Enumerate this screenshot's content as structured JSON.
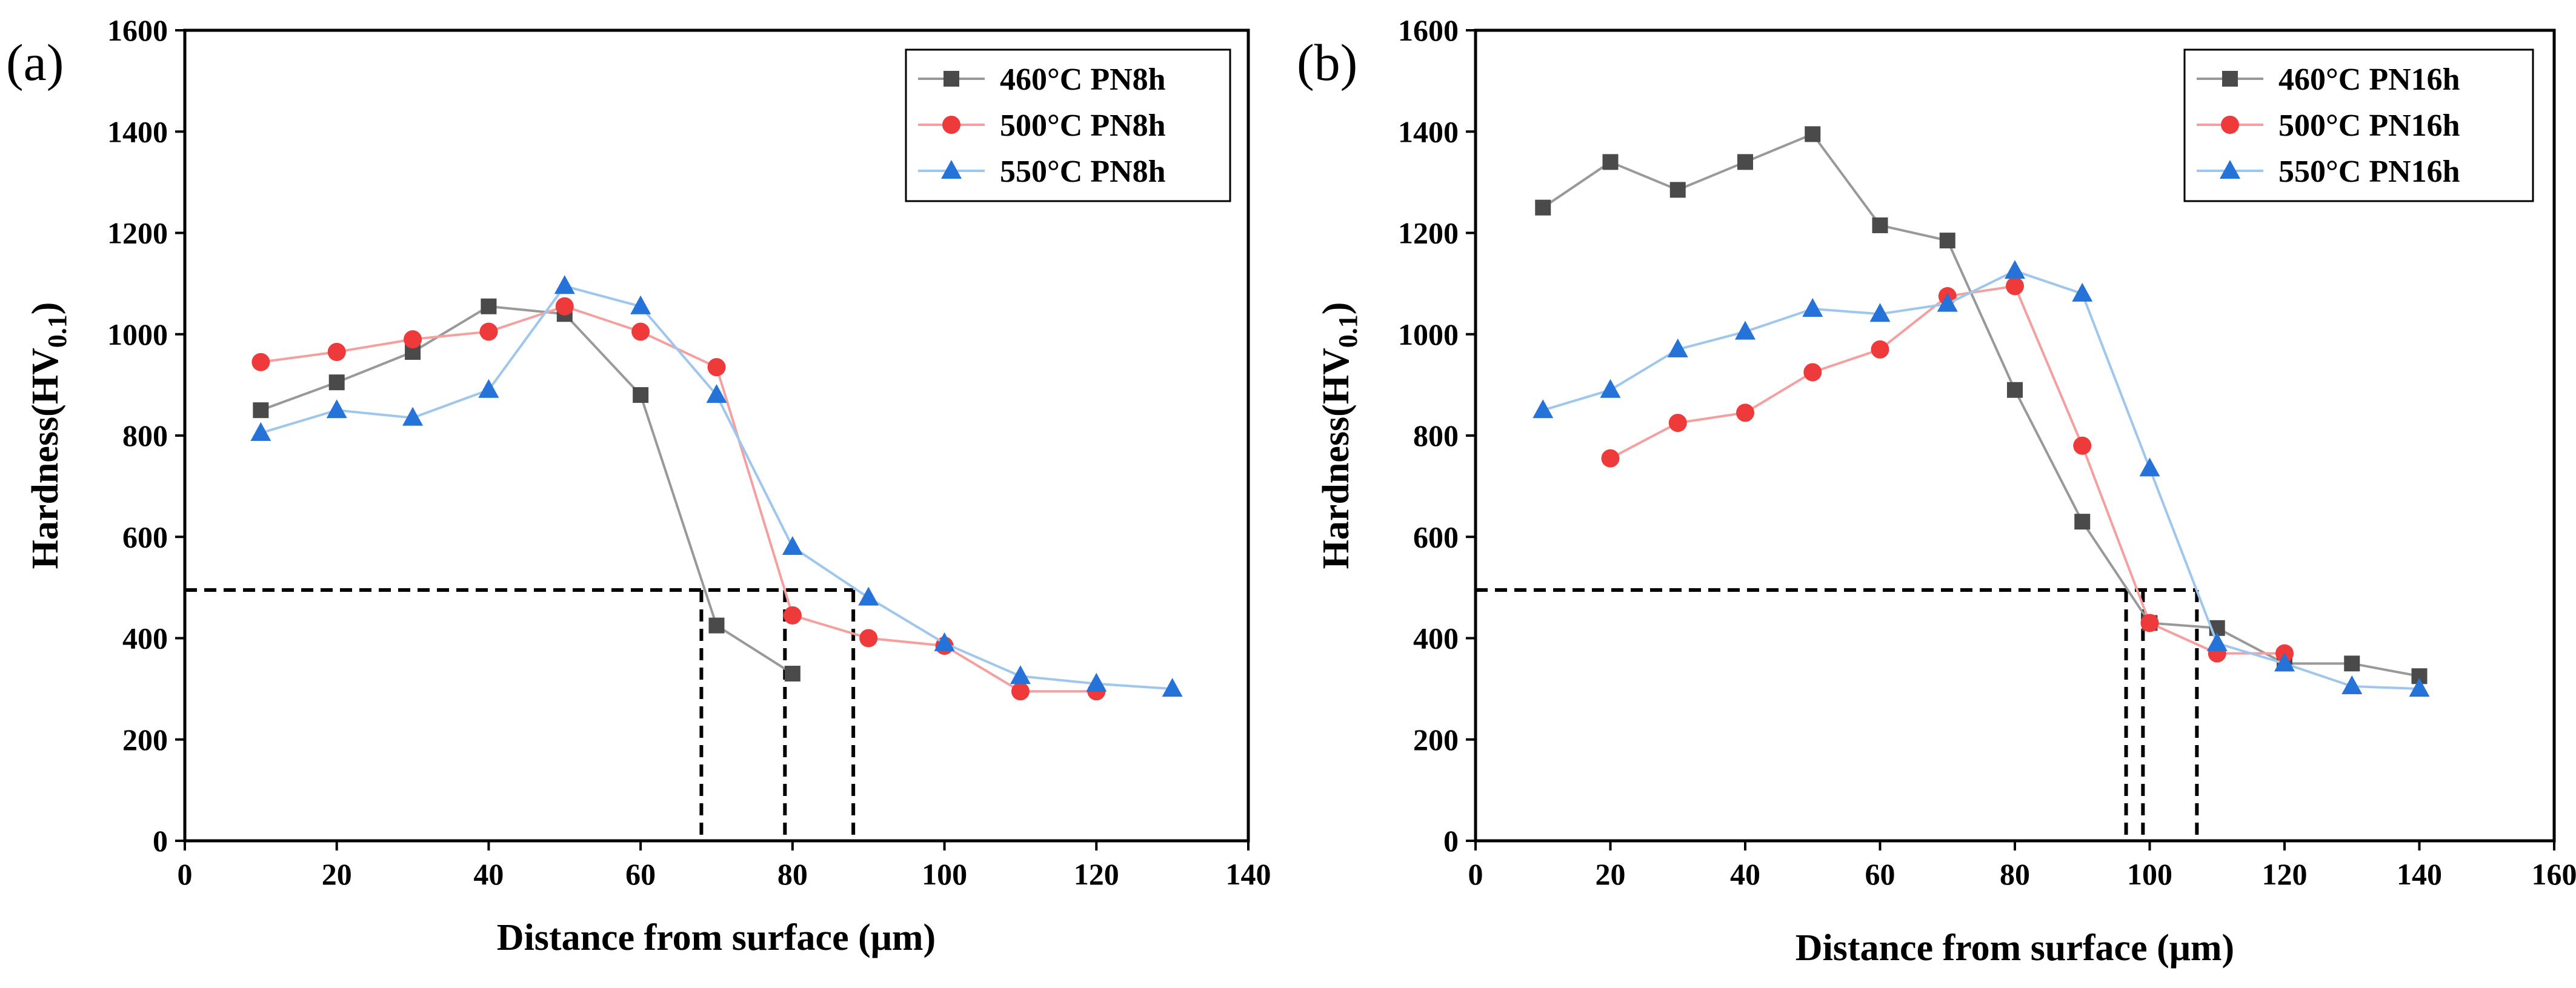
{
  "colors": {
    "series_460": "#4a4a4a",
    "series_500": "#ee3a3a",
    "series_550": "#2573d9",
    "line_460": "#999999",
    "line_500": "#f4a0a0",
    "line_550": "#9fc7ee",
    "axis": "#000000",
    "guide": "#000000"
  },
  "chart_data": [
    {
      "panel": "(a)",
      "type": "line",
      "xlabel": "Distance from surface (μm)",
      "ylabel_main": "Hardness(HV",
      "ylabel_sub": "0.1",
      "ylabel_close": ")",
      "xlim": [
        0,
        140
      ],
      "ylim": [
        0,
        1600
      ],
      "xticks": [
        0,
        20,
        40,
        60,
        80,
        100,
        120,
        140
      ],
      "yticks": [
        0,
        200,
        400,
        600,
        800,
        1000,
        1200,
        1400,
        1600
      ],
      "legend_position": "top-right",
      "series": [
        {
          "name": "460°C PN8h",
          "marker": "square",
          "colorKey": "series_460",
          "lineKey": "line_460",
          "x": [
            10,
            20,
            30,
            40,
            50,
            60,
            70,
            80
          ],
          "y": [
            850,
            905,
            965,
            1055,
            1040,
            880,
            425,
            330
          ]
        },
        {
          "name": "500°C PN8h",
          "marker": "circle",
          "colorKey": "series_500",
          "lineKey": "line_500",
          "x": [
            10,
            20,
            30,
            40,
            50,
            60,
            70,
            80,
            90,
            100,
            110,
            120
          ],
          "y": [
            945,
            965,
            990,
            1005,
            1055,
            1005,
            935,
            445,
            400,
            385,
            295,
            295
          ]
        },
        {
          "name": "550°C PN8h",
          "marker": "triangle",
          "colorKey": "series_550",
          "lineKey": "line_550",
          "x": [
            10,
            20,
            30,
            40,
            50,
            60,
            70,
            80,
            90,
            100,
            110,
            120,
            130
          ],
          "y": [
            805,
            850,
            835,
            890,
            1095,
            1055,
            880,
            580,
            480,
            390,
            325,
            310,
            300
          ]
        }
      ],
      "guides": {
        "y": 495,
        "x": [
          68,
          79,
          88
        ]
      }
    },
    {
      "panel": "(b)",
      "type": "line",
      "xlabel": "Distance from surface (μm)",
      "ylabel_main": "Hardness(HV",
      "ylabel_sub": "0.1",
      "ylabel_close": ")",
      "xlim": [
        0,
        160
      ],
      "ylim": [
        0,
        1600
      ],
      "xticks": [
        0,
        20,
        40,
        60,
        80,
        100,
        120,
        140,
        160
      ],
      "yticks": [
        0,
        200,
        400,
        600,
        800,
        1000,
        1200,
        1400,
        1600
      ],
      "legend_position": "top-right",
      "series": [
        {
          "name": "460°C PN16h",
          "marker": "square",
          "colorKey": "series_460",
          "lineKey": "line_460",
          "x": [
            10,
            20,
            30,
            40,
            50,
            60,
            70,
            80,
            90,
            100,
            110,
            120,
            130,
            140
          ],
          "y": [
            1250,
            1340,
            1285,
            1340,
            1395,
            1215,
            1185,
            890,
            630,
            430,
            420,
            350,
            350,
            325
          ]
        },
        {
          "name": "500°C PN16h",
          "marker": "circle",
          "colorKey": "series_500",
          "lineKey": "line_500",
          "x": [
            20,
            30,
            40,
            50,
            60,
            70,
            80,
            90,
            100,
            110,
            120
          ],
          "y": [
            755,
            825,
            845,
            925,
            970,
            1075,
            1095,
            780,
            430,
            370,
            370
          ]
        },
        {
          "name": "550°C PN16h",
          "marker": "triangle",
          "colorKey": "series_550",
          "lineKey": "line_550",
          "x": [
            10,
            20,
            30,
            40,
            50,
            60,
            70,
            80,
            90,
            100,
            110,
            120,
            130,
            140
          ],
          "y": [
            850,
            890,
            970,
            1005,
            1050,
            1040,
            1060,
            1125,
            1080,
            735,
            390,
            350,
            305,
            300
          ]
        }
      ],
      "guides": {
        "y": 495,
        "x": [
          96.5,
          99,
          107
        ]
      }
    }
  ]
}
